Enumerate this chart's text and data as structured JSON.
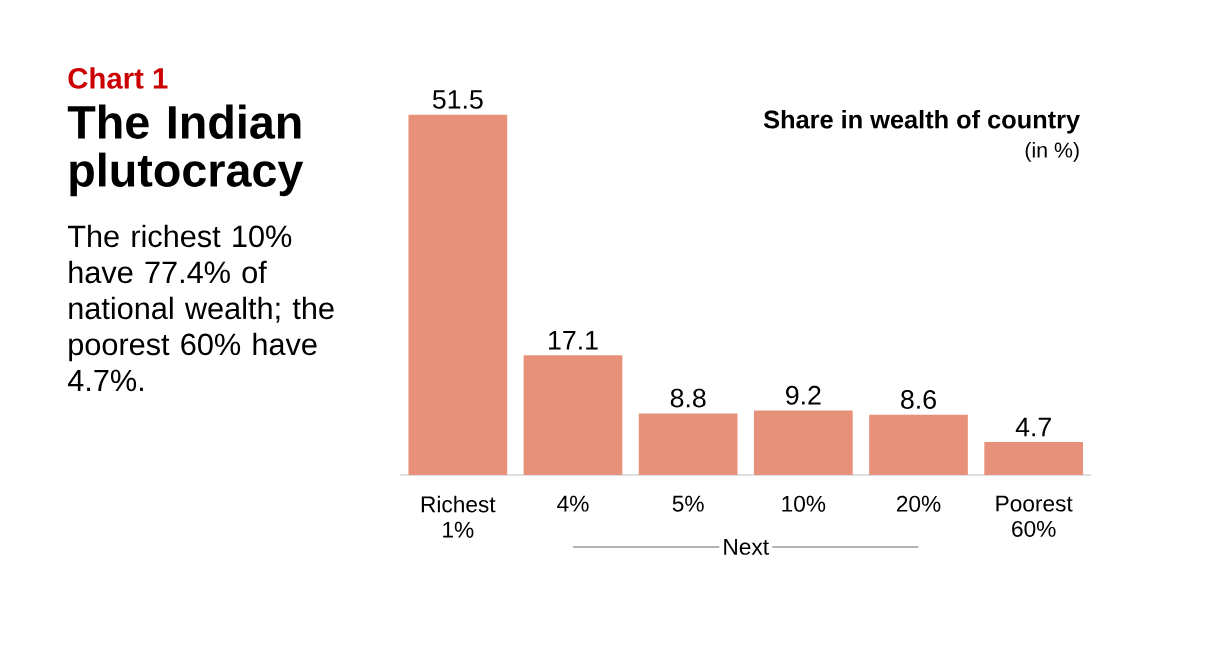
{
  "chart_data": {
    "type": "bar",
    "subtitle": "Chart 1",
    "title": "The Indian plutocracy",
    "categories": [
      "Richest 1%",
      "4%",
      "5%",
      "10%",
      "20%",
      "Poorest 60%"
    ],
    "values": [
      51.5,
      17.1,
      8.8,
      9.2,
      8.6,
      4.7
    ],
    "color": "#e8917a",
    "data_labels": true,
    "annotations": [
      "The richest 10% have 77.4% of national wealth; the poorest 60% have 4.7%.",
      "Share in wealth of country",
      "(in %)",
      "Next"
    ]
  }
}
